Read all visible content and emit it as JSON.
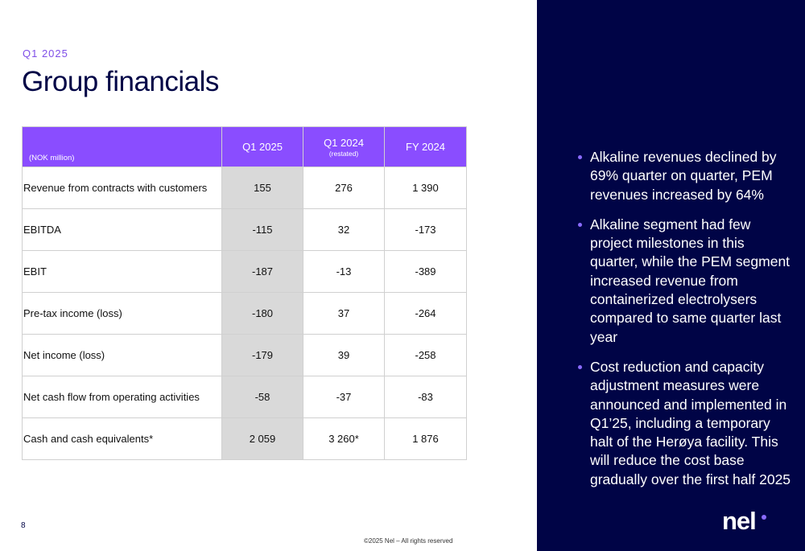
{
  "slide": {
    "kicker": "Q1 2025",
    "title": "Group financials",
    "page_number": "8",
    "copyright": "©2025 Nel – All rights reserved"
  },
  "table": {
    "unit_label": "(NOK million)",
    "columns": [
      {
        "label": "Q1 2025",
        "sub": ""
      },
      {
        "label": "Q1 2024",
        "sub": "(restated)"
      },
      {
        "label": "FY 2024",
        "sub": ""
      }
    ],
    "rows": [
      {
        "label": "Revenue from contracts with customers",
        "values": [
          "155",
          "276",
          "1 390"
        ]
      },
      {
        "label": "EBITDA",
        "values": [
          "-115",
          "32",
          "-173"
        ]
      },
      {
        "label": "EBIT",
        "values": [
          "-187",
          "-13",
          "-389"
        ]
      },
      {
        "label": "Pre-tax income (loss)",
        "values": [
          "-180",
          "37",
          "-264"
        ]
      },
      {
        "label": "Net income (loss)",
        "values": [
          "-179",
          "39",
          "-258"
        ]
      },
      {
        "label": "Net cash flow from operating activities",
        "values": [
          "-58",
          "-37",
          "-83"
        ]
      },
      {
        "label": "Cash and cash equivalents*",
        "values": [
          "2 059",
          "3 260*",
          "1 876"
        ]
      }
    ]
  },
  "bullets": [
    "Alkaline revenues declined by 69% quarter on quarter, PEM revenues increased by 64%",
    "Alkaline segment had few project milestones in this quarter, while the PEM segment increased revenue from containerized electrolysers compared to same quarter last year",
    "Cost reduction and capacity adjustment measures were announced and implemented in Q1’25, including a temporary halt of the Herøya facility. This will reduce the cost base gradually over the first half 2025"
  ],
  "logo": {
    "text": "nel"
  },
  "colors": {
    "accent_purple": "#8a4dff",
    "navy": "#000446",
    "highlight_gray": "#d9d9d9"
  }
}
